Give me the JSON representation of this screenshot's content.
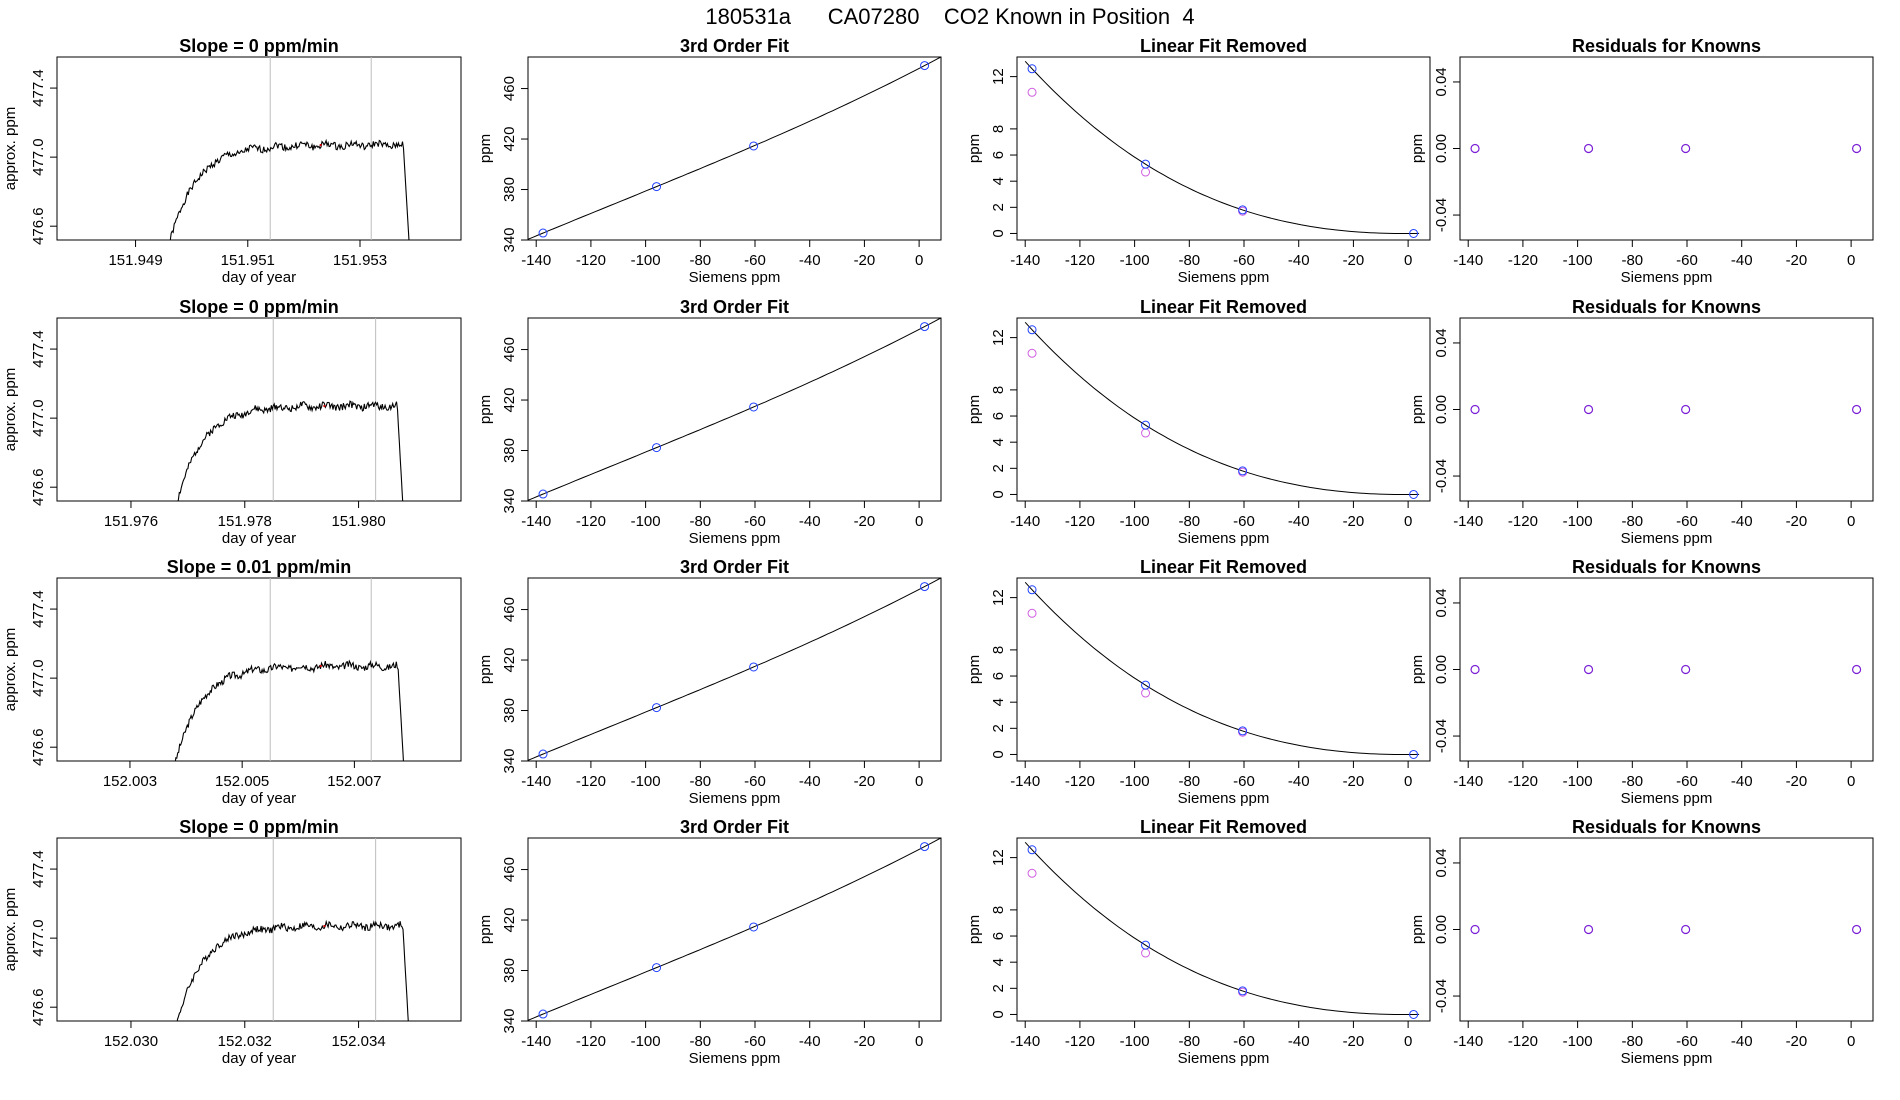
{
  "page": {
    "title": "180531a      CA07280    CO2 Known in Position  4"
  },
  "colors": {
    "axis": "#000000",
    "trace": "#000000",
    "window_line": "#bdbdbd",
    "marker_mean": "#cc0000",
    "point_blue": "#1f3fff",
    "point_magenta": "#d060e0",
    "point_residual": "#7a1fd6"
  },
  "chart_data": [
    {
      "type": "line",
      "title": "Slope =  0  ppm/min",
      "xlabel": "day of year",
      "ylabel": "approx. ppm",
      "xlim": [
        151.9476,
        151.9548
      ],
      "ylim": [
        476.52,
        477.58
      ],
      "xticks": [
        "151.949",
        "151.951",
        "151.953"
      ],
      "yticks": [
        "476.6",
        "477.0",
        "477.4"
      ],
      "window": [
        151.9514,
        151.9532
      ],
      "series": [
        {
          "x_start": 151.9496,
          "x_end": 151.9539,
          "plateau": 477.07,
          "seed": 1
        }
      ]
    },
    {
      "type": "line",
      "title": "3rd Order Fit",
      "xlabel": "Siemens ppm",
      "ylabel": "ppm",
      "xlim": [
        -143,
        8
      ],
      "ylim": [
        340,
        485
      ],
      "xticks": [
        "-140",
        "-120",
        "-100",
        "-80",
        "-60",
        "-40",
        "-20",
        "0"
      ],
      "yticks": [
        "340",
        "380",
        "420",
        "460"
      ],
      "points": [
        {
          "x": -137.5,
          "y": 345.5
        },
        {
          "x": -96.0,
          "y": 382.3
        },
        {
          "x": -60.5,
          "y": 414.5
        },
        {
          "x": 2.0,
          "y": 478.2
        }
      ]
    },
    {
      "type": "line",
      "title": "Linear Fit Removed",
      "xlabel": "Siemens ppm",
      "ylabel": "ppm",
      "xlim": [
        -143,
        8
      ],
      "ylim": [
        -0.5,
        13.5
      ],
      "xticks": [
        "-140",
        "-120",
        "-100",
        "-80",
        "-60",
        "-40",
        "-20",
        "0"
      ],
      "yticks": [
        "0",
        "2",
        "4",
        "6",
        "8",
        "12"
      ],
      "blue_points": [
        {
          "x": -137.5,
          "y": 12.6
        },
        {
          "x": -96.0,
          "y": 5.3
        },
        {
          "x": -60.5,
          "y": 1.8
        },
        {
          "x": 2.0,
          "y": 0.0
        }
      ],
      "magenta_points": [
        {
          "x": -137.5,
          "y": 10.8
        },
        {
          "x": -96.0,
          "y": 4.7
        },
        {
          "x": -60.5,
          "y": 1.7
        }
      ]
    },
    {
      "type": "scatter",
      "title": "Residuals for Knowns",
      "xlabel": "Siemens ppm",
      "ylabel": "ppm",
      "xlim": [
        -143,
        8
      ],
      "ylim": [
        -0.055,
        0.055
      ],
      "xticks": [
        "-140",
        "-120",
        "-100",
        "-80",
        "-60",
        "-40",
        "-20",
        "0"
      ],
      "yticks": [
        "-0.04",
        "0.00",
        "0.04"
      ],
      "points": [
        {
          "x": -137.5,
          "y": 0.0
        },
        {
          "x": -96.0,
          "y": 0.0
        },
        {
          "x": -60.5,
          "y": 0.0
        },
        {
          "x": 2.0,
          "y": 0.0
        }
      ]
    },
    {
      "type": "line",
      "title": "Slope =  0  ppm/min",
      "xlabel": "day of year",
      "ylabel": "approx. ppm",
      "xlim": [
        151.9747,
        151.9818
      ],
      "ylim": [
        476.52,
        477.58
      ],
      "xticks": [
        "151.976",
        "151.978",
        "151.980"
      ],
      "yticks": [
        "476.6",
        "477.0",
        "477.4"
      ],
      "window": [
        151.9785,
        151.9803
      ],
      "series": [
        {
          "x_start": 151.9768,
          "x_end": 151.9808,
          "plateau": 477.07,
          "seed": 2
        }
      ]
    },
    {
      "type": "line",
      "title": "3rd Order Fit",
      "xlabel": "Siemens ppm",
      "ylabel": "ppm",
      "xlim": [
        -143,
        8
      ],
      "ylim": [
        340,
        485
      ],
      "xticks": [
        "-140",
        "-120",
        "-100",
        "-80",
        "-60",
        "-40",
        "-20",
        "0"
      ],
      "yticks": [
        "340",
        "380",
        "420",
        "460"
      ],
      "points": [
        {
          "x": -137.5,
          "y": 345.5
        },
        {
          "x": -96.0,
          "y": 382.3
        },
        {
          "x": -60.5,
          "y": 414.5
        },
        {
          "x": 2.0,
          "y": 478.2
        }
      ]
    },
    {
      "type": "line",
      "title": "Linear Fit Removed",
      "xlabel": "Siemens ppm",
      "ylabel": "ppm",
      "xlim": [
        -143,
        8
      ],
      "ylim": [
        -0.5,
        13.5
      ],
      "xticks": [
        "-140",
        "-120",
        "-100",
        "-80",
        "-60",
        "-40",
        "-20",
        "0"
      ],
      "yticks": [
        "0",
        "2",
        "4",
        "6",
        "8",
        "12"
      ],
      "blue_points": [
        {
          "x": -137.5,
          "y": 12.6
        },
        {
          "x": -96.0,
          "y": 5.3
        },
        {
          "x": -60.5,
          "y": 1.8
        },
        {
          "x": 2.0,
          "y": 0.0
        }
      ],
      "magenta_points": [
        {
          "x": -137.5,
          "y": 10.8
        },
        {
          "x": -96.0,
          "y": 4.7
        },
        {
          "x": -60.5,
          "y": 1.7
        }
      ]
    },
    {
      "type": "scatter",
      "title": "Residuals for Knowns",
      "xlabel": "Siemens ppm",
      "ylabel": "ppm",
      "xlim": [
        -143,
        8
      ],
      "ylim": [
        -0.055,
        0.055
      ],
      "xticks": [
        "-140",
        "-120",
        "-100",
        "-80",
        "-60",
        "-40",
        "-20",
        "0"
      ],
      "yticks": [
        "-0.04",
        "0.00",
        "0.04"
      ],
      "points": [
        {
          "x": -137.5,
          "y": 0.0
        },
        {
          "x": -96.0,
          "y": 0.0
        },
        {
          "x": -60.5,
          "y": 0.0
        },
        {
          "x": 2.0,
          "y": 0.0
        }
      ]
    },
    {
      "type": "line",
      "title": "Slope =  0.01  ppm/min",
      "xlabel": "day of year",
      "ylabel": "approx. ppm",
      "xlim": [
        152.0017,
        152.0089
      ],
      "ylim": [
        476.52,
        477.58
      ],
      "xticks": [
        "152.003",
        "152.005",
        "152.007"
      ],
      "yticks": [
        "476.6",
        "477.0",
        "477.4"
      ],
      "window": [
        152.0055,
        152.0073
      ],
      "series": [
        {
          "x_start": 152.0038,
          "x_end": 152.0079,
          "plateau": 477.07,
          "seed": 3
        }
      ]
    },
    {
      "type": "line",
      "title": "3rd Order Fit",
      "xlabel": "Siemens ppm",
      "ylabel": "ppm",
      "xlim": [
        -143,
        8
      ],
      "ylim": [
        340,
        485
      ],
      "xticks": [
        "-140",
        "-120",
        "-100",
        "-80",
        "-60",
        "-40",
        "-20",
        "0"
      ],
      "yticks": [
        "340",
        "380",
        "420",
        "460"
      ],
      "points": [
        {
          "x": -137.5,
          "y": 345.5
        },
        {
          "x": -96.0,
          "y": 382.3
        },
        {
          "x": -60.5,
          "y": 414.5
        },
        {
          "x": 2.0,
          "y": 478.2
        }
      ]
    },
    {
      "type": "line",
      "title": "Linear Fit Removed",
      "xlabel": "Siemens ppm",
      "ylabel": "ppm",
      "xlim": [
        -143,
        8
      ],
      "ylim": [
        -0.5,
        13.5
      ],
      "xticks": [
        "-140",
        "-120",
        "-100",
        "-80",
        "-60",
        "-40",
        "-20",
        "0"
      ],
      "yticks": [
        "0",
        "2",
        "4",
        "6",
        "8",
        "12"
      ],
      "blue_points": [
        {
          "x": -137.5,
          "y": 12.6
        },
        {
          "x": -96.0,
          "y": 5.3
        },
        {
          "x": -60.5,
          "y": 1.8
        },
        {
          "x": 2.0,
          "y": 0.0
        }
      ],
      "magenta_points": [
        {
          "x": -137.5,
          "y": 10.8
        },
        {
          "x": -96.0,
          "y": 4.7
        },
        {
          "x": -60.5,
          "y": 1.7
        }
      ]
    },
    {
      "type": "scatter",
      "title": "Residuals for Knowns",
      "xlabel": "Siemens ppm",
      "ylabel": "ppm",
      "xlim": [
        -143,
        8
      ],
      "ylim": [
        -0.055,
        0.055
      ],
      "xticks": [
        "-140",
        "-120",
        "-100",
        "-80",
        "-60",
        "-40",
        "-20",
        "0"
      ],
      "yticks": [
        "-0.04",
        "0.00",
        "0.04"
      ],
      "points": [
        {
          "x": -137.5,
          "y": 0.0
        },
        {
          "x": -96.0,
          "y": 0.0
        },
        {
          "x": -60.5,
          "y": 0.0
        },
        {
          "x": 2.0,
          "y": 0.0
        }
      ]
    },
    {
      "type": "line",
      "title": "Slope =  0  ppm/min",
      "xlabel": "day of year",
      "ylabel": "approx. ppm",
      "xlim": [
        152.0287,
        152.0358
      ],
      "ylim": [
        476.52,
        477.58
      ],
      "xticks": [
        "152.030",
        "152.032",
        "152.034"
      ],
      "yticks": [
        "476.6",
        "477.0",
        "477.4"
      ],
      "window": [
        152.0325,
        152.0343
      ],
      "series": [
        {
          "x_start": 152.0308,
          "x_end": 152.0349,
          "plateau": 477.07,
          "seed": 4
        }
      ]
    },
    {
      "type": "line",
      "title": "3rd Order Fit",
      "xlabel": "Siemens ppm",
      "ylabel": "ppm",
      "xlim": [
        -143,
        8
      ],
      "ylim": [
        340,
        485
      ],
      "xticks": [
        "-140",
        "-120",
        "-100",
        "-80",
        "-60",
        "-40",
        "-20",
        "0"
      ],
      "yticks": [
        "340",
        "380",
        "420",
        "460"
      ],
      "points": [
        {
          "x": -137.5,
          "y": 345.5
        },
        {
          "x": -96.0,
          "y": 382.3
        },
        {
          "x": -60.5,
          "y": 414.5
        },
        {
          "x": 2.0,
          "y": 478.2
        }
      ]
    },
    {
      "type": "line",
      "title": "Linear Fit Removed",
      "xlabel": "Siemens ppm",
      "ylabel": "ppm",
      "xlim": [
        -143,
        8
      ],
      "ylim": [
        -0.5,
        13.5
      ],
      "xticks": [
        "-140",
        "-120",
        "-100",
        "-80",
        "-60",
        "-40",
        "-20",
        "0"
      ],
      "yticks": [
        "0",
        "2",
        "4",
        "6",
        "8",
        "12"
      ],
      "blue_points": [
        {
          "x": -137.5,
          "y": 12.6
        },
        {
          "x": -96.0,
          "y": 5.3
        },
        {
          "x": -60.5,
          "y": 1.8
        },
        {
          "x": 2.0,
          "y": 0.0
        }
      ],
      "magenta_points": [
        {
          "x": -137.5,
          "y": 10.8
        },
        {
          "x": -96.0,
          "y": 4.7
        },
        {
          "x": -60.5,
          "y": 1.7
        }
      ]
    },
    {
      "type": "scatter",
      "title": "Residuals for Knowns",
      "xlabel": "Siemens ppm",
      "ylabel": "ppm",
      "xlim": [
        -143,
        8
      ],
      "ylim": [
        -0.055,
        0.055
      ],
      "xticks": [
        "-140",
        "-120",
        "-100",
        "-80",
        "-60",
        "-40",
        "-20",
        "0"
      ],
      "yticks": [
        "-0.04",
        "0.00",
        "0.04"
      ],
      "points": [
        {
          "x": -137.5,
          "y": 0.0
        },
        {
          "x": -96.0,
          "y": 0.0
        },
        {
          "x": -60.5,
          "y": 0.0
        },
        {
          "x": 2.0,
          "y": 0.0
        }
      ]
    }
  ]
}
